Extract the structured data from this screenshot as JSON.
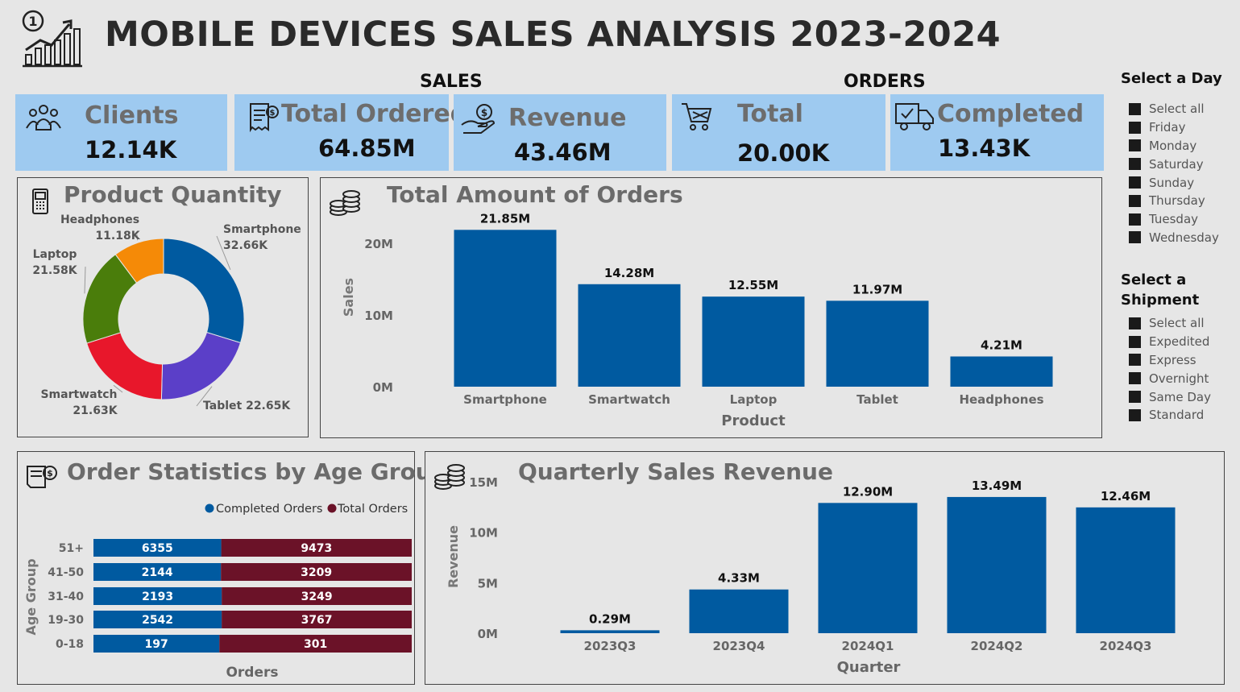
{
  "header": {
    "title": "MOBILE DEVICES SALES ANALYSIS 2023-2024",
    "logo_icon": "growth-chart-icon",
    "logo_badge": "1"
  },
  "groups": {
    "sales": "SALES",
    "orders": "ORDERS"
  },
  "kpis": [
    {
      "title": "Clients",
      "value": "12.14K",
      "icon": "people-icon"
    },
    {
      "title": "Total Ordered",
      "value": "64.85M",
      "icon": "invoice-icon"
    },
    {
      "title": "Revenue",
      "value": "43.46M",
      "icon": "money-hand-icon"
    },
    {
      "title": "Total",
      "value": "20.00K",
      "icon": "shopping-cart-icon"
    },
    {
      "title": "Completed",
      "value": "13.43K",
      "icon": "delivery-truck-icon"
    }
  ],
  "slicers": {
    "day": {
      "title": "Select a Day",
      "items": [
        "Select all",
        "Friday",
        "Monday",
        "Saturday",
        "Sunday",
        "Thursday",
        "Tuesday",
        "Wednesday"
      ]
    },
    "shipment": {
      "title_line1": "Select a",
      "title_line2": "Shipment",
      "items": [
        "Select all",
        "Expedited",
        "Express",
        "Overnight",
        "Same Day",
        "Standard"
      ]
    }
  },
  "panels": {
    "product_quantity": "Product Quantity",
    "total_amount": "Total Amount of Orders",
    "age_groups": "Order Statistics by Age Groups",
    "quarterly": "Quarterly Sales Revenue"
  },
  "colors": {
    "kpi_bg": "#9ecaf0",
    "bar_blue": "#005aa0",
    "bar_maroon": "#6b1228",
    "donut": [
      "#005aa0",
      "#5b3fc8",
      "#e8172b",
      "#4a7d0b",
      "#f58a07"
    ]
  },
  "chart_data": [
    {
      "id": "product_quantity",
      "type": "pie",
      "title": "Product Quantity",
      "slices": [
        {
          "name": "Smartphone",
          "value": 32.66,
          "label": "32.66K",
          "color": "#005aa0"
        },
        {
          "name": "Tablet",
          "value": 22.65,
          "label": "22.65K",
          "color": "#5b3fc8"
        },
        {
          "name": "Smartwatch",
          "value": 21.63,
          "label": "21.63K",
          "color": "#e8172b"
        },
        {
          "name": "Laptop",
          "value": 21.58,
          "label": "21.58K",
          "color": "#4a7d0b"
        },
        {
          "name": "Headphones",
          "value": 11.18,
          "label": "11.18K",
          "color": "#f58a07"
        }
      ]
    },
    {
      "id": "total_amount",
      "type": "bar",
      "title": "Total Amount of Orders",
      "xlabel": "Product",
      "ylabel": "Sales",
      "ylim": [
        0,
        22
      ],
      "yticks": [
        {
          "v": 0,
          "label": "0M"
        },
        {
          "v": 10,
          "label": "10M"
        },
        {
          "v": 20,
          "label": "20M"
        }
      ],
      "categories": [
        "Smartphone",
        "Smartwatch",
        "Laptop",
        "Tablet",
        "Headphones"
      ],
      "values": [
        21.85,
        14.28,
        12.55,
        11.97,
        4.21
      ],
      "labels": [
        "21.85M",
        "14.28M",
        "12.55M",
        "11.97M",
        "4.21M"
      ]
    },
    {
      "id": "age_groups",
      "type": "bar",
      "orientation": "horizontal-stacked",
      "title": "Order Statistics by Age Groups",
      "xlabel": "Orders",
      "ylabel": "Age Group",
      "legend": "top-right",
      "categories": [
        "51+",
        "41-50",
        "31-40",
        "19-30",
        "0-18"
      ],
      "series": [
        {
          "name": "Completed Orders",
          "values": [
            6355,
            2144,
            2193,
            2542,
            197
          ],
          "color": "#005aa0"
        },
        {
          "name": "Total Orders",
          "values": [
            9473,
            3209,
            3249,
            3767,
            301
          ],
          "color": "#6b1228"
        }
      ]
    },
    {
      "id": "quarterly",
      "type": "bar",
      "title": "Quarterly Sales Revenue",
      "xlabel": "Quarter",
      "ylabel": "Revenue",
      "ylim": [
        0,
        15
      ],
      "yticks": [
        {
          "v": 0,
          "label": "0M"
        },
        {
          "v": 5,
          "label": "5M"
        },
        {
          "v": 10,
          "label": "10M"
        },
        {
          "v": 15,
          "label": "15M"
        }
      ],
      "categories": [
        "2023Q3",
        "2023Q4",
        "2024Q1",
        "2024Q2",
        "2024Q3"
      ],
      "values": [
        0.29,
        4.33,
        12.9,
        13.49,
        12.46
      ],
      "labels": [
        "0.29M",
        "4.33M",
        "12.90M",
        "13.49M",
        "12.46M"
      ]
    }
  ]
}
